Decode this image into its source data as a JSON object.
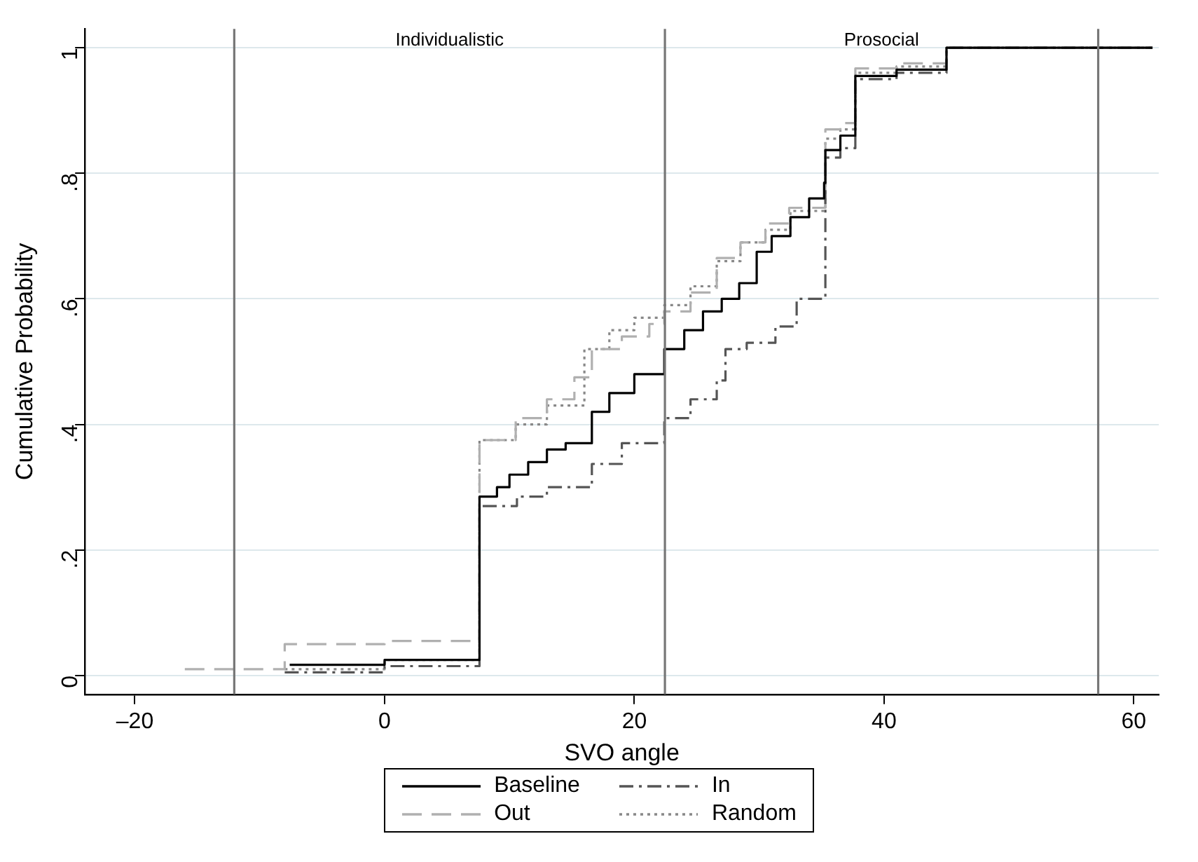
{
  "chart_data": {
    "type": "step",
    "xlabel": "SVO angle",
    "ylabel": "Cumulative Probability",
    "xlim": [
      -24,
      62
    ],
    "ylim": [
      -0.03,
      1.03
    ],
    "xticks": [
      {
        "value": -20,
        "label": "–20"
      },
      0,
      20,
      40,
      60
    ],
    "yticks": [
      0,
      {
        "value": 0.2,
        "label": ".2"
      },
      {
        "value": 0.4,
        "label": ".4"
      },
      {
        "value": 0.6,
        "label": ".6"
      },
      {
        "value": 0.8,
        "label": ".8"
      },
      1
    ],
    "grid": "y",
    "legend": "bottom",
    "marker": "none",
    "ref_lines": [
      {
        "axis": "x",
        "value": -12.04,
        "color": "#777777"
      },
      {
        "axis": "x",
        "value": 22.45,
        "color": "#777777"
      },
      {
        "axis": "x",
        "value": 57.15,
        "color": "#777777"
      }
    ],
    "annotations": [
      "Individualistic",
      "Prosocial"
    ],
    "series": [
      {
        "name": "Baseline",
        "color": "#000000",
        "line_style": "solid",
        "x": [
          -7.6,
          0,
          7.6,
          9,
          10,
          11.5,
          13,
          14.5,
          16.6,
          18,
          20,
          22.4,
          24,
          25.5,
          27,
          28.4,
          29.8,
          31,
          32.5,
          34,
          35.2,
          35.3,
          36.5,
          37.7,
          41,
          45,
          61.5
        ],
        "values": [
          0.017,
          0.025,
          0.285,
          0.3,
          0.32,
          0.34,
          0.36,
          0.37,
          0.42,
          0.45,
          0.48,
          0.52,
          0.55,
          0.58,
          0.6,
          0.625,
          0.675,
          0.7,
          0.73,
          0.76,
          0.785,
          0.837,
          0.86,
          0.955,
          0.965,
          1,
          1
        ]
      },
      {
        "name": "In",
        "color": "#555555",
        "line_style": "dashdot",
        "x": [
          -8,
          0,
          7.6,
          10.6,
          13,
          16.6,
          19,
          22.4,
          24.5,
          26.6,
          27.3,
          29,
          31.3,
          33,
          35.3,
          36.5,
          37.7,
          41,
          45,
          61.5
        ],
        "values": [
          0.005,
          0.015,
          0.27,
          0.285,
          0.3,
          0.337,
          0.37,
          0.41,
          0.44,
          0.47,
          0.52,
          0.53,
          0.556,
          0.6,
          0.825,
          0.84,
          0.95,
          0.96,
          1,
          1
        ]
      },
      {
        "name": "Out",
        "color": "#b0b0b0",
        "line_style": "dashed",
        "x": [
          -16,
          -8,
          0,
          7.6,
          10.5,
          13,
          15.2,
          16.6,
          19,
          21.2,
          22.4,
          24.5,
          26.6,
          28.5,
          30.5,
          32.4,
          35.3,
          36.5,
          37.7,
          41,
          45,
          61.5
        ],
        "values": [
          0.01,
          0.05,
          0.055,
          0.375,
          0.41,
          0.44,
          0.475,
          0.52,
          0.54,
          0.56,
          0.58,
          0.61,
          0.665,
          0.69,
          0.72,
          0.745,
          0.87,
          0.88,
          0.967,
          0.975,
          1,
          1
        ]
      },
      {
        "name": "Random",
        "color": "#888888",
        "line_style": "dotted",
        "x": [
          -8,
          0,
          7.6,
          10.5,
          13,
          16,
          18,
          20,
          22.4,
          24.5,
          26.6,
          28.5,
          30.5,
          32.5,
          35.3,
          36.5,
          37.7,
          41,
          45,
          61.5
        ],
        "values": [
          0.01,
          0.025,
          0.375,
          0.4,
          0.43,
          0.52,
          0.55,
          0.57,
          0.59,
          0.62,
          0.66,
          0.69,
          0.71,
          0.74,
          0.855,
          0.87,
          0.96,
          0.97,
          1,
          1
        ]
      }
    ]
  }
}
